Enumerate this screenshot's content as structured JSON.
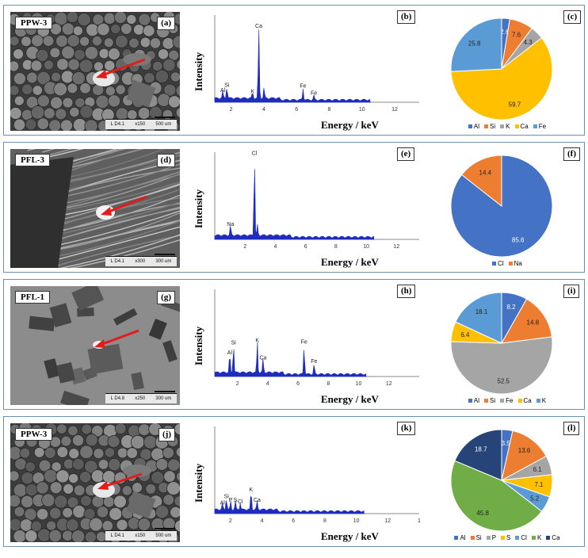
{
  "energy_axis_label": "Energy / keV",
  "intensity_axis_label": "Intensity",
  "pie_colors": {
    "Al": "#4472c4",
    "Si": "#ed7d31",
    "K": "#a5a5a5",
    "Ca": "#ffc000",
    "Fe": "#5b9bd5",
    "Cl": "#4472c4",
    "Na": "#ed7d31",
    "P": "#a5a5a5",
    "S": "#ffc000",
    "Cl_l": "#5b9bd5",
    "K_l": "#70ad47",
    "Ca_l": "#264478"
  },
  "panels": [
    {
      "sample": "PPW-3",
      "sem_letter": "(a)",
      "eds_letter": "(b)",
      "pie_letter": "(c)",
      "sem_scale": [
        "L D4.1",
        "x150",
        "500 um"
      ],
      "sem_style": "granular",
      "eds_ticks": [
        "2",
        "4",
        "6",
        "8",
        "10",
        "12"
      ],
      "eds_peaks_labels": [
        "Al",
        "Si",
        "Ca",
        "K",
        "Fe",
        "Fe"
      ]
    },
    {
      "sample": "PFL-3",
      "sem_letter": "(d)",
      "eds_letter": "(e)",
      "pie_letter": "(f)",
      "sem_scale": [
        "L D4.1",
        "x300",
        "300 um"
      ],
      "sem_style": "fibrous",
      "eds_ticks": [
        "2",
        "4",
        "6",
        "8",
        "10",
        "12"
      ],
      "eds_peaks_labels": [
        "Na",
        "Cl"
      ]
    },
    {
      "sample": "PFL-1",
      "sem_letter": "(g)",
      "eds_letter": "(h)",
      "pie_letter": "(i)",
      "sem_scale": [
        "L D4.8",
        "x250",
        "300 um"
      ],
      "sem_style": "flat",
      "eds_ticks": [
        "2",
        "4",
        "6",
        "8",
        "10",
        "12"
      ],
      "eds_peaks_labels": [
        "Al",
        "Si",
        "K",
        "Ca",
        "Fe",
        "Fe"
      ]
    },
    {
      "sample": "PPW-3",
      "sem_letter": "(j)",
      "eds_letter": "(k)",
      "pie_letter": "(l)",
      "sem_scale": [
        "L D4.1",
        "x150",
        "500 um"
      ],
      "sem_style": "granular",
      "eds_ticks": [
        "2",
        "4",
        "6",
        "8",
        "10",
        "12",
        "1"
      ],
      "eds_peaks_labels": [
        "Al",
        "Si",
        "P",
        "S",
        "Cl",
        "K",
        "Ca"
      ]
    }
  ],
  "chart_data": [
    {
      "type": "line",
      "panel": "(b)",
      "xlabel": "Energy / keV",
      "ylabel": "Intensity",
      "xlim": [
        1,
        13.5
      ],
      "peaks": [
        {
          "element": "Al",
          "energy": 1.49,
          "height": 0.08
        },
        {
          "element": "Si",
          "energy": 1.74,
          "height": 0.14
        },
        {
          "element": "K",
          "energy": 3.31,
          "height": 0.07
        },
        {
          "element": "Ca",
          "energy": 3.69,
          "height": 0.82
        },
        {
          "element": "Ca",
          "energy": 4.01,
          "height": 0.12
        },
        {
          "element": "Fe",
          "energy": 6.4,
          "height": 0.13
        },
        {
          "element": "Fe",
          "energy": 7.06,
          "height": 0.05
        }
      ]
    },
    {
      "type": "pie",
      "panel": "(c)",
      "labels": [
        "Al",
        "Si",
        "K",
        "Ca",
        "Fe"
      ],
      "values": [
        2.6,
        7.6,
        4.3,
        59.7,
        25.8
      ]
    },
    {
      "type": "line",
      "panel": "(e)",
      "xlabel": "Energy / keV",
      "ylabel": "Intensity",
      "xlim": [
        0,
        13.5
      ],
      "peaks": [
        {
          "element": "Na",
          "energy": 1.04,
          "height": 0.12
        },
        {
          "element": "Cl",
          "energy": 2.62,
          "height": 0.93
        },
        {
          "element": "Cl",
          "energy": 2.82,
          "height": 0.12
        }
      ]
    },
    {
      "type": "pie",
      "panel": "(f)",
      "labels": [
        "Cl",
        "Na"
      ],
      "values": [
        85.6,
        14.4
      ]
    },
    {
      "type": "line",
      "panel": "(h)",
      "xlabel": "Energy / keV",
      "ylabel": "Intensity",
      "xlim": [
        0.5,
        14
      ],
      "peaks": [
        {
          "element": "Al",
          "energy": 1.49,
          "height": 0.22
        },
        {
          "element": "Si",
          "energy": 1.74,
          "height": 0.33
        },
        {
          "element": "K",
          "energy": 3.31,
          "height": 0.36
        },
        {
          "element": "Ca",
          "energy": 3.69,
          "height": 0.16
        },
        {
          "element": "Fe",
          "energy": 6.4,
          "height": 0.34
        },
        {
          "element": "Fe",
          "energy": 7.06,
          "height": 0.12
        }
      ]
    },
    {
      "type": "pie",
      "panel": "(i)",
      "labels": [
        "Al",
        "Si",
        "Fe",
        "Ca",
        "K"
      ],
      "values": [
        8.2,
        14.8,
        52.5,
        6.4,
        18.1
      ]
    },
    {
      "type": "line",
      "panel": "(k)",
      "xlabel": "Energy / keV",
      "ylabel": "Intensity",
      "xlim": [
        1,
        14
      ],
      "peaks": [
        {
          "element": "Al",
          "energy": 1.49,
          "height": 0.07
        },
        {
          "element": "Si",
          "energy": 1.74,
          "height": 0.14
        },
        {
          "element": "P",
          "energy": 2.01,
          "height": 0.1
        },
        {
          "element": "S",
          "energy": 2.31,
          "height": 0.1
        },
        {
          "element": "Cl",
          "energy": 2.62,
          "height": 0.08
        },
        {
          "element": "K",
          "energy": 3.31,
          "height": 0.22
        },
        {
          "element": "Ca",
          "energy": 3.69,
          "height": 0.1
        }
      ]
    },
    {
      "type": "pie",
      "panel": "(l)",
      "labels": [
        "Al",
        "Si",
        "P",
        "S",
        "Cl",
        "K",
        "Ca"
      ],
      "values": [
        3.5,
        13.6,
        6.1,
        7.1,
        5.2,
        45.8,
        18.7
      ]
    }
  ]
}
